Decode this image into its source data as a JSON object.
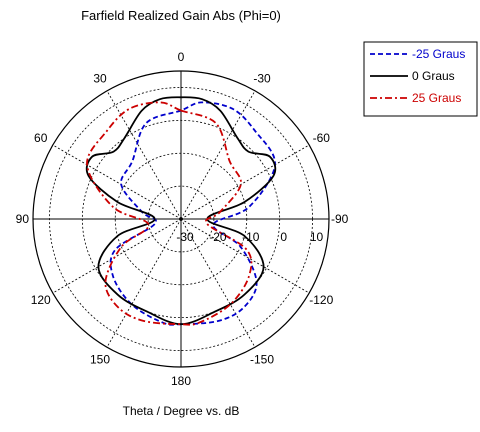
{
  "chart_data": {
    "type": "polar",
    "title": "Farfield Realized Gain Abs (Phi=0)",
    "xlabel": "Theta / Degree vs. dB",
    "angle_ticks": [
      {
        "deg": 0,
        "label": "0"
      },
      {
        "deg": 30,
        "label": "30"
      },
      {
        "deg": 60,
        "label": "60"
      },
      {
        "deg": 90,
        "label": "90"
      },
      {
        "deg": 120,
        "label": "120"
      },
      {
        "deg": 150,
        "label": "150"
      },
      {
        "deg": 180,
        "label": "180"
      },
      {
        "deg": 210,
        "label": "-150"
      },
      {
        "deg": 240,
        "label": "-120"
      },
      {
        "deg": 270,
        "label": "-90"
      },
      {
        "deg": 300,
        "label": "-60"
      },
      {
        "deg": 330,
        "label": "-30"
      }
    ],
    "radial_ticks": [
      "-30",
      "-20",
      "-10",
      "0",
      "10"
    ],
    "rlim": [
      -30,
      15
    ],
    "legend_position": "top-right",
    "series": [
      {
        "name": "-25 Graus",
        "color": "#0000cc",
        "dash": "dashed",
        "points": [
          [
            0,
            3
          ],
          [
            20,
            1
          ],
          [
            40,
            -7
          ],
          [
            60,
            -9
          ],
          [
            80,
            -18
          ],
          [
            100,
            -22
          ],
          [
            115,
            -8
          ],
          [
            130,
            -3
          ],
          [
            150,
            0
          ],
          [
            170,
            2
          ],
          [
            180,
            2
          ],
          [
            200,
            3
          ],
          [
            215,
            3
          ],
          [
            230,
            0
          ],
          [
            245,
            -10
          ],
          [
            260,
            -20
          ],
          [
            280,
            -9
          ],
          [
            300,
            3
          ],
          [
            320,
            5
          ],
          [
            335,
            7
          ],
          [
            350,
            6
          ],
          [
            360,
            3
          ]
        ]
      },
      {
        "name": "0 Graus",
        "color": "#000000",
        "dash": "solid",
        "points": [
          [
            0,
            7
          ],
          [
            10,
            7
          ],
          [
            20,
            5
          ],
          [
            35,
            0
          ],
          [
            45,
            -1
          ],
          [
            55,
            3
          ],
          [
            65,
            1
          ],
          [
            75,
            -10
          ],
          [
            90,
            -22
          ],
          [
            105,
            -10
          ],
          [
            120,
            -1
          ],
          [
            140,
            0
          ],
          [
            160,
            0
          ],
          [
            180,
            2
          ],
          [
            200,
            0
          ],
          [
            220,
            0
          ],
          [
            240,
            -1
          ],
          [
            255,
            -10
          ],
          [
            270,
            -22
          ],
          [
            285,
            -10
          ],
          [
            295,
            1
          ],
          [
            305,
            3
          ],
          [
            315,
            -1
          ],
          [
            325,
            0
          ],
          [
            340,
            5
          ],
          [
            350,
            7
          ],
          [
            360,
            7
          ]
        ]
      },
      {
        "name": "25 Graus",
        "color": "#cc0000",
        "dash": "dashdot",
        "points": [
          [
            0,
            3
          ],
          [
            10,
            6
          ],
          [
            25,
            7
          ],
          [
            40,
            5
          ],
          [
            60,
            3
          ],
          [
            80,
            -9
          ],
          [
            100,
            -20
          ],
          [
            115,
            -10
          ],
          [
            130,
            0
          ],
          [
            145,
            3
          ],
          [
            160,
            3
          ],
          [
            180,
            2
          ],
          [
            190,
            2
          ],
          [
            210,
            0
          ],
          [
            230,
            -3
          ],
          [
            245,
            -8
          ],
          [
            260,
            -22
          ],
          [
            280,
            -18
          ],
          [
            300,
            -9
          ],
          [
            320,
            -7
          ],
          [
            340,
            1
          ],
          [
            360,
            3
          ]
        ]
      }
    ]
  }
}
